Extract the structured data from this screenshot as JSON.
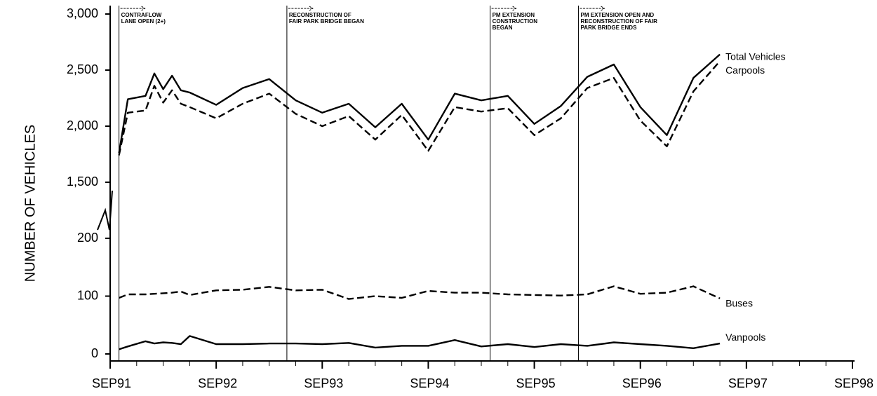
{
  "chart_data": {
    "type": "line",
    "y_label": "NUMBER OF VEHICLES",
    "x": [
      "OCT91",
      "NOV91",
      "JAN92",
      "FEB92",
      "MAR92",
      "APR92",
      "MAY92",
      "JUN92",
      "SEP92",
      "DEC92",
      "MAR93",
      "JUN93",
      "SEP93",
      "DEC93",
      "MAR94",
      "JUN94",
      "SEP94",
      "DEC94",
      "MAR95",
      "JUN95",
      "SEP95",
      "DEC95",
      "MAR96",
      "JUN96",
      "SEP96",
      "DEC96",
      "MAR97",
      "JUN97"
    ],
    "series": [
      {
        "name": "Total Vehicles",
        "color": "#000000",
        "dashed": false,
        "values": [
          1760,
          2240,
          2270,
          2470,
          2330,
          2450,
          2320,
          2300,
          2190,
          2340,
          2420,
          2230,
          2120,
          2200,
          1990,
          2200,
          1880,
          2290,
          2230,
          2270,
          2020,
          2180,
          2440,
          2550,
          2170,
          1920,
          2430,
          2640
        ]
      },
      {
        "name": "Carpools",
        "color": "#000000",
        "dashed": true,
        "values": [
          1740,
          2120,
          2140,
          2360,
          2210,
          2320,
          2200,
          2170,
          2070,
          2200,
          2290,
          2110,
          2000,
          2090,
          1880,
          2100,
          1780,
          2170,
          2130,
          2160,
          1920,
          2070,
          2340,
          2430,
          2050,
          1820,
          2310,
          2580
        ]
      },
      {
        "name": "Buses",
        "color": "#000000",
        "dashed": true,
        "values": [
          97,
          103,
          103,
          104,
          105,
          106,
          108,
          102,
          110,
          111,
          116,
          110,
          111,
          95,
          100,
          97,
          109,
          106,
          106,
          103,
          102,
          101,
          103,
          117,
          104,
          106,
          117,
          96
        ]
      },
      {
        "name": "Vanpools",
        "color": "#000000",
        "dashed": false,
        "values": [
          8,
          13,
          22,
          18,
          20,
          19,
          17,
          31,
          17,
          17,
          18,
          18,
          17,
          19,
          11,
          14,
          14,
          24,
          13,
          17,
          12,
          17,
          14,
          20,
          17,
          14,
          10,
          18
        ]
      }
    ],
    "xlim": [
      "SEP91",
      "SEP98"
    ],
    "xticks": [
      "SEP91",
      "SEP92",
      "SEP93",
      "SEP94",
      "SEP95",
      "SEP96",
      "SEP97",
      "SEP98"
    ],
    "xminorticks": [
      "DEC91",
      "MAR92",
      "JUN92",
      "DEC92",
      "MAR93",
      "JUN93",
      "DEC93",
      "MAR94",
      "JUN94",
      "DEC94",
      "MAR95",
      "JUN95",
      "DEC95",
      "MAR96",
      "JUN96",
      "DEC96",
      "MAR97",
      "JUN97",
      "DEC97",
      "MAR98",
      "JUN98"
    ],
    "ylim": [
      0,
      3000
    ],
    "ybreak": [
      200,
      1500
    ],
    "yticks": [
      0,
      100,
      200,
      {
        "value": 1500,
        "label": "1,500"
      },
      {
        "value": 2000,
        "label": "2,000"
      },
      {
        "value": 2500,
        "label": "2,500"
      },
      {
        "value": 3000,
        "label": "3,000"
      }
    ],
    "annotations": [
      {
        "x": "OCT91",
        "lines": [
          "CONTRAFLOW",
          "LANE OPEN (2+)"
        ]
      },
      {
        "x": "MAY93",
        "lines": [
          "RECONSTRUCTION OF",
          "FAIR PARK BRIDGE BEGAN"
        ]
      },
      {
        "x": "APR95",
        "lines": [
          "PM EXTENSION",
          "CONSTRUCTION",
          "BEGAN"
        ]
      },
      {
        "x": "FEB96",
        "lines": [
          "PM EXTENSION OPEN AND",
          "RECONSTRUCTION OF FAIR",
          "PARK BRIDGE ENDS"
        ]
      }
    ]
  }
}
